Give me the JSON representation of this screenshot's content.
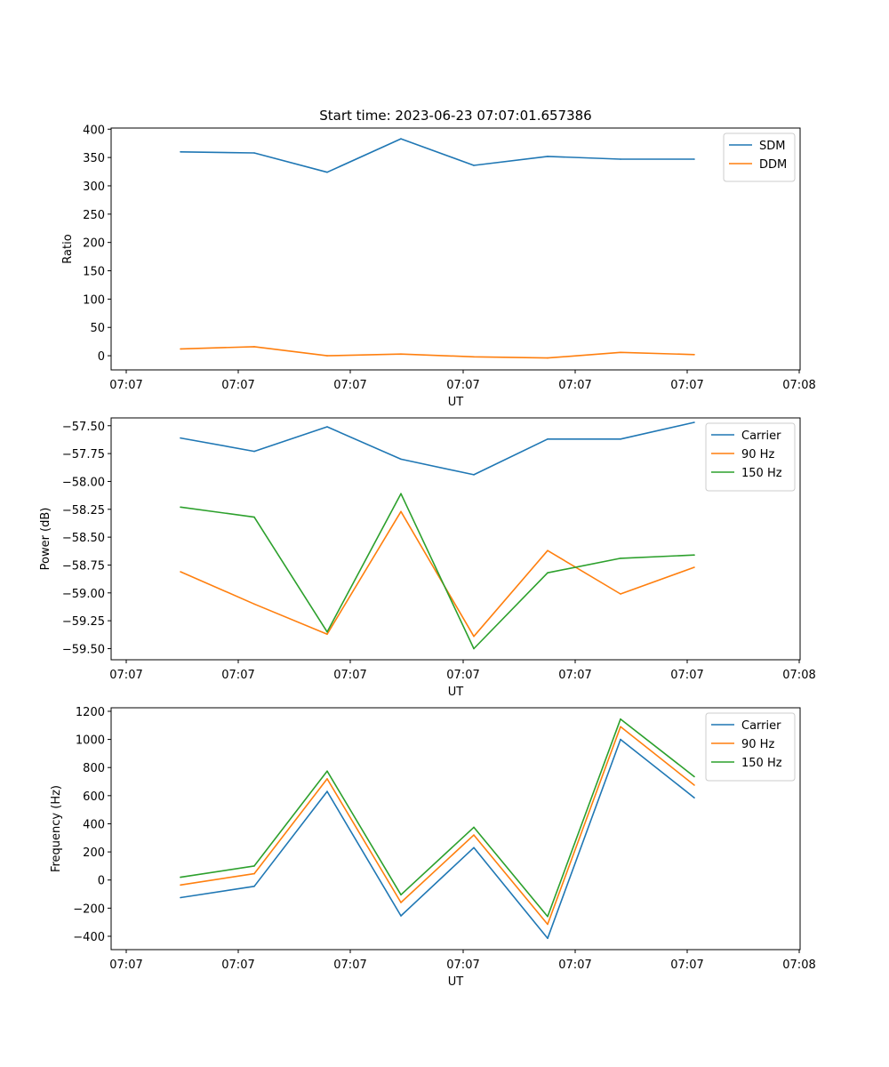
{
  "chart_data": [
    {
      "type": "line",
      "title": "Start time: 2023-06-23 07:07:01.657386",
      "xlabel": "UT",
      "ylabel": "Ratio",
      "x_tick_labels": [
        "07:07",
        "07:07",
        "07:07",
        "07:07",
        "07:07",
        "07:07",
        "07:08"
      ],
      "y_ticks": [
        0,
        50,
        100,
        150,
        200,
        250,
        300,
        350,
        400
      ],
      "y_tick_labels": [
        "0",
        "50",
        "100",
        "150",
        "200",
        "250",
        "300",
        "350",
        "400"
      ],
      "ylim": [
        -25,
        402
      ],
      "grid": false,
      "legend": "top-right",
      "series": [
        {
          "name": "SDM",
          "color": "#1f77b4",
          "values": [
            360,
            358,
            324,
            383,
            336,
            352,
            347,
            347
          ]
        },
        {
          "name": "DDM",
          "color": "#ff7f0e",
          "values": [
            12,
            16,
            0,
            3,
            -2,
            -4,
            6,
            2
          ]
        }
      ]
    },
    {
      "type": "line",
      "title": "",
      "xlabel": "UT",
      "ylabel": "Power (dB)",
      "x_tick_labels": [
        "07:07",
        "07:07",
        "07:07",
        "07:07",
        "07:07",
        "07:07",
        "07:08"
      ],
      "y_ticks": [
        -59.5,
        -59.25,
        -59.0,
        -58.75,
        -58.5,
        -58.25,
        -58.0,
        -57.75,
        -57.5
      ],
      "y_tick_labels": [
        "−59.50",
        "−59.25",
        "−59.00",
        "−58.75",
        "−58.50",
        "−58.25",
        "−58.00",
        "−57.75",
        "−57.50"
      ],
      "ylim": [
        -59.6,
        -57.43
      ],
      "grid": false,
      "legend": "top-right",
      "series": [
        {
          "name": "Carrier",
          "color": "#1f77b4",
          "values": [
            -57.61,
            -57.73,
            -57.51,
            -57.8,
            -57.94,
            -57.62,
            -57.62,
            -57.47
          ]
        },
        {
          "name": "90 Hz",
          "color": "#ff7f0e",
          "values": [
            -58.81,
            -59.1,
            -59.37,
            -58.27,
            -59.39,
            -58.62,
            -59.01,
            -58.77
          ]
        },
        {
          "name": "150 Hz",
          "color": "#2ca02c",
          "values": [
            -58.23,
            -58.32,
            -59.35,
            -58.11,
            -59.5,
            -58.82,
            -58.69,
            -58.66
          ]
        }
      ]
    },
    {
      "type": "line",
      "title": "",
      "xlabel": "UT",
      "ylabel": "Frequency (Hz)",
      "x_tick_labels": [
        "07:07",
        "07:07",
        "07:07",
        "07:07",
        "07:07",
        "07:07",
        "07:08"
      ],
      "y_ticks": [
        -400,
        -200,
        0,
        200,
        400,
        600,
        800,
        1000,
        1200
      ],
      "y_tick_labels": [
        "−400",
        "−200",
        "0",
        "200",
        "400",
        "600",
        "800",
        "1000",
        "1200"
      ],
      "ylim": [
        -495,
        1225
      ],
      "grid": false,
      "legend": "top-right",
      "series": [
        {
          "name": "Carrier",
          "color": "#1f77b4",
          "values": [
            -125,
            -45,
            630,
            -255,
            230,
            -415,
            1000,
            585
          ]
        },
        {
          "name": "90 Hz",
          "color": "#ff7f0e",
          "values": [
            -35,
            45,
            720,
            -160,
            320,
            -315,
            1090,
            675
          ]
        },
        {
          "name": "150 Hz",
          "color": "#2ca02c",
          "values": [
            20,
            100,
            775,
            -105,
            375,
            -260,
            1145,
            735
          ]
        }
      ]
    }
  ]
}
